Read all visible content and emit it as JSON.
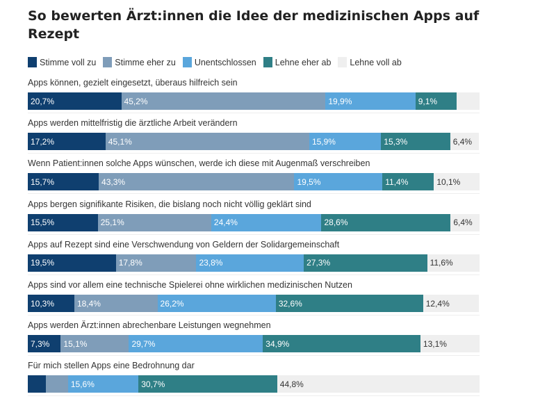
{
  "chart_data": {
    "type": "bar",
    "orientation": "horizontal",
    "stacked": true,
    "title": "So bewerten Ärzt:innen die Idee der medizinischen Apps auf Rezept",
    "legend_position": "top",
    "xlim": [
      0,
      100
    ],
    "series": [
      {
        "name": "Stimme voll zu",
        "color": "#0f3f6f"
      },
      {
        "name": "Stimme eher zu",
        "color": "#7f9db9"
      },
      {
        "name": "Unentschlossen",
        "color": "#5aa6dc"
      },
      {
        "name": "Lehne eher ab",
        "color": "#2f7f86"
      },
      {
        "name": "Lehne voll ab",
        "color": "#efefef"
      }
    ],
    "rows": [
      {
        "label": "Apps können, gezielt eingesetzt, überaus hilfreich sein",
        "values": [
          20.7,
          45.2,
          19.9,
          9.1,
          5.1
        ],
        "labels": [
          "20,7%",
          "45,2%",
          "19,9%",
          "9,1%",
          ""
        ]
      },
      {
        "label": "Apps werden mittelfristig die ärztliche Arbeit verändern",
        "values": [
          17.2,
          45.1,
          15.9,
          15.3,
          6.4
        ],
        "labels": [
          "17,2%",
          "45,1%",
          "15,9%",
          "15,3%",
          "6,4%"
        ]
      },
      {
        "label": "Wenn Patient:innen solche Apps wünschen, werde ich diese mit Augenmaß verschreiben",
        "values": [
          15.7,
          43.3,
          19.5,
          11.4,
          10.1
        ],
        "labels": [
          "15,7%",
          "43,3%",
          "19,5%",
          "11,4%",
          "10,1%"
        ]
      },
      {
        "label": "Apps bergen signifikante Risiken, die bislang noch nicht völlig geklärt sind",
        "values": [
          15.5,
          25.1,
          24.4,
          28.6,
          6.4
        ],
        "labels": [
          "15,5%",
          "25,1%",
          "24,4%",
          "28,6%",
          "6,4%"
        ]
      },
      {
        "label": "Apps auf Rezept sind eine Verschwendung von Geldern der Solidargemeinschaft",
        "values": [
          19.5,
          17.8,
          23.8,
          27.3,
          11.6
        ],
        "labels": [
          "19,5%",
          "17,8%",
          "23,8%",
          "27,3%",
          "11,6%"
        ]
      },
      {
        "label": "Apps sind vor allem eine technische Spielerei ohne wirklichen medizinischen Nutzen",
        "values": [
          10.3,
          18.4,
          26.2,
          32.6,
          12.4
        ],
        "labels": [
          "10,3%",
          "18,4%",
          "26,2%",
          "32,6%",
          "12,4%"
        ]
      },
      {
        "label": "Apps werden Ärzt:innen abrechenbare Leistungen wegnehmen",
        "values": [
          7.3,
          15.1,
          29.7,
          34.9,
          13.1
        ],
        "labels": [
          "7,3%",
          "15,1%",
          "29,7%",
          "34,9%",
          "13,1%"
        ]
      },
      {
        "label": "Für mich stellen Apps eine Bedrohnung dar",
        "values": [
          4.0,
          4.9,
          15.6,
          30.7,
          44.8
        ],
        "labels": [
          "",
          "",
          "15,6%",
          "30,7%",
          "44,8%"
        ]
      }
    ]
  }
}
